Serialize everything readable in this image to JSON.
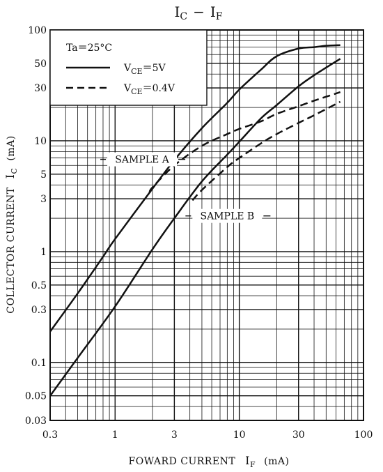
{
  "chart_data": {
    "type": "line",
    "title": "I_C − I_F",
    "title_parts": {
      "main1": "I",
      "sub1": "C",
      "dash": "−",
      "main2": "I",
      "sub2": "F"
    },
    "xlabel_parts": {
      "text": "FOWARD CURRENT",
      "sym": "I",
      "sub": "F",
      "unit": "(mA)"
    },
    "ylabel_parts": {
      "text": "COLLECTOR CURRENT",
      "sym": "I",
      "sub": "C",
      "unit": "(mA)"
    },
    "x_scale": "log",
    "y_scale": "log",
    "xlim": [
      0.3,
      100
    ],
    "ylim": [
      0.03,
      100
    ],
    "x_ticks": [
      {
        "value": 0.3,
        "label": "0.3"
      },
      {
        "value": 1,
        "label": "1"
      },
      {
        "value": 3,
        "label": "3"
      },
      {
        "value": 10,
        "label": "10"
      },
      {
        "value": 30,
        "label": "30"
      },
      {
        "value": 100,
        "label": "100"
      }
    ],
    "y_ticks": [
      {
        "value": 0.03,
        "label": "0.03"
      },
      {
        "value": 0.05,
        "label": "0.05"
      },
      {
        "value": 0.1,
        "label": "0.1"
      },
      {
        "value": 0.3,
        "label": "0.3"
      },
      {
        "value": 0.5,
        "label": "0.5"
      },
      {
        "value": 1,
        "label": "1"
      },
      {
        "value": 3,
        "label": "3"
      },
      {
        "value": 5,
        "label": "5"
      },
      {
        "value": 10,
        "label": "10"
      },
      {
        "value": 30,
        "label": "30"
      },
      {
        "value": 50,
        "label": "50"
      },
      {
        "value": 100,
        "label": "100"
      }
    ],
    "grid": true,
    "legend": {
      "placement": "top-left",
      "condition": "Ta＝25°C",
      "entries": [
        {
          "prefix": "V",
          "sub": "CE",
          "suffix": "＝5V",
          "style": "solid"
        },
        {
          "prefix": "V",
          "sub": "CE",
          "suffix": "＝0.4V",
          "style": "dashed"
        }
      ]
    },
    "annotations": [
      {
        "text": "SAMPLE A",
        "x": 1.65,
        "y": 6.8
      },
      {
        "text": "SAMPLE B",
        "x": 8.0,
        "y": 2.1
      }
    ],
    "series": [
      {
        "style": "solid",
        "sample": "A",
        "points": [
          [
            0.3,
            0.19
          ],
          [
            0.5,
            0.42
          ],
          [
            0.8,
            0.9
          ],
          [
            1,
            1.3
          ],
          [
            2,
            3.7
          ],
          [
            3,
            6.7
          ],
          [
            5,
            13
          ],
          [
            8,
            22
          ],
          [
            10,
            29
          ],
          [
            15,
            44
          ],
          [
            20,
            58
          ],
          [
            30,
            68
          ],
          [
            40,
            70
          ],
          [
            50,
            72
          ],
          [
            65,
            73
          ]
        ]
      },
      {
        "style": "dashed",
        "sample": "A",
        "points": [
          [
            1.9,
            3.4
          ],
          [
            2,
            3.8
          ],
          [
            3,
            6
          ],
          [
            5,
            9
          ],
          [
            8,
            11.5
          ],
          [
            10,
            12.8
          ],
          [
            15,
            15
          ],
          [
            20,
            17.5
          ],
          [
            30,
            20.5
          ],
          [
            40,
            23
          ],
          [
            65,
            27.5
          ]
        ]
      },
      {
        "style": "solid",
        "sample": "B",
        "points": [
          [
            0.3,
            0.05
          ],
          [
            0.5,
            0.11
          ],
          [
            1,
            0.32
          ],
          [
            2,
            1.05
          ],
          [
            3,
            2
          ],
          [
            5,
            4.3
          ],
          [
            8,
            7.5
          ],
          [
            10,
            9.8
          ],
          [
            15,
            16
          ],
          [
            20,
            21
          ],
          [
            30,
            31
          ],
          [
            40,
            39
          ],
          [
            65,
            55
          ]
        ]
      },
      {
        "style": "dashed",
        "sample": "B",
        "points": [
          [
            4.2,
            2.9
          ],
          [
            5,
            3.6
          ],
          [
            8,
            5.8
          ],
          [
            10,
            7
          ],
          [
            15,
            9.5
          ],
          [
            20,
            11.5
          ],
          [
            30,
            14.5
          ],
          [
            40,
            17
          ],
          [
            65,
            22.5
          ]
        ]
      }
    ]
  }
}
